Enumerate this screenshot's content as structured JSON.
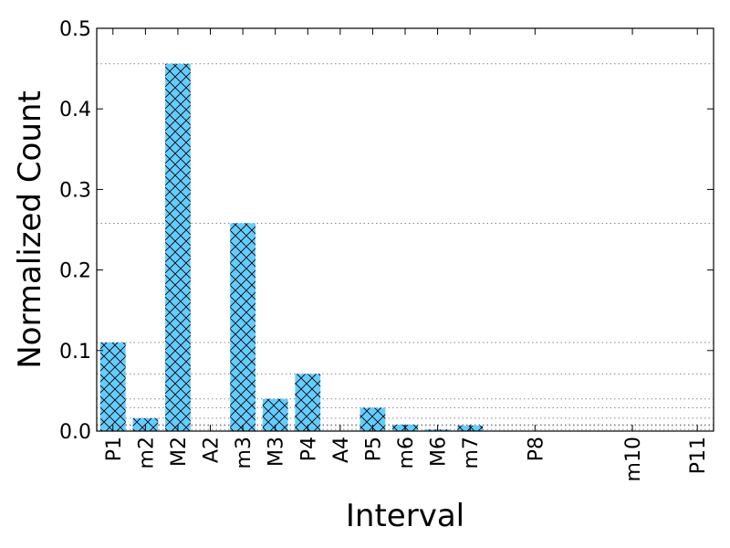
{
  "chart_data": {
    "type": "bar",
    "title": "",
    "xlabel": "Interval",
    "ylabel": "Normalized Count",
    "ylim": [
      0,
      0.5
    ],
    "yticks": [
      "0.0",
      "0.1",
      "0.2",
      "0.3",
      "0.4",
      "0.5"
    ],
    "x_slots": 19,
    "categories": [
      "P1",
      "m2",
      "M2",
      "A2",
      "m3",
      "M3",
      "P4",
      "A4",
      "P5",
      "m6",
      "M6",
      "m7",
      "P8",
      "m10",
      "P11"
    ],
    "slot_index": [
      0,
      1,
      2,
      3,
      4,
      5,
      6,
      7,
      8,
      9,
      10,
      11,
      13,
      16,
      18
    ],
    "values": [
      0.11,
      0.016,
      0.456,
      0.0,
      0.258,
      0.04,
      0.071,
      0.0,
      0.029,
      0.008,
      0.002,
      0.007,
      0.0,
      0.0,
      0.0
    ],
    "reference_lines": [
      0.456,
      0.258,
      0.11,
      0.071,
      0.04,
      0.029,
      0.016,
      0.008,
      0.007,
      0.002
    ],
    "bar_color": "#66ccff",
    "bar_hatch": "crosshatch",
    "grid": false
  }
}
